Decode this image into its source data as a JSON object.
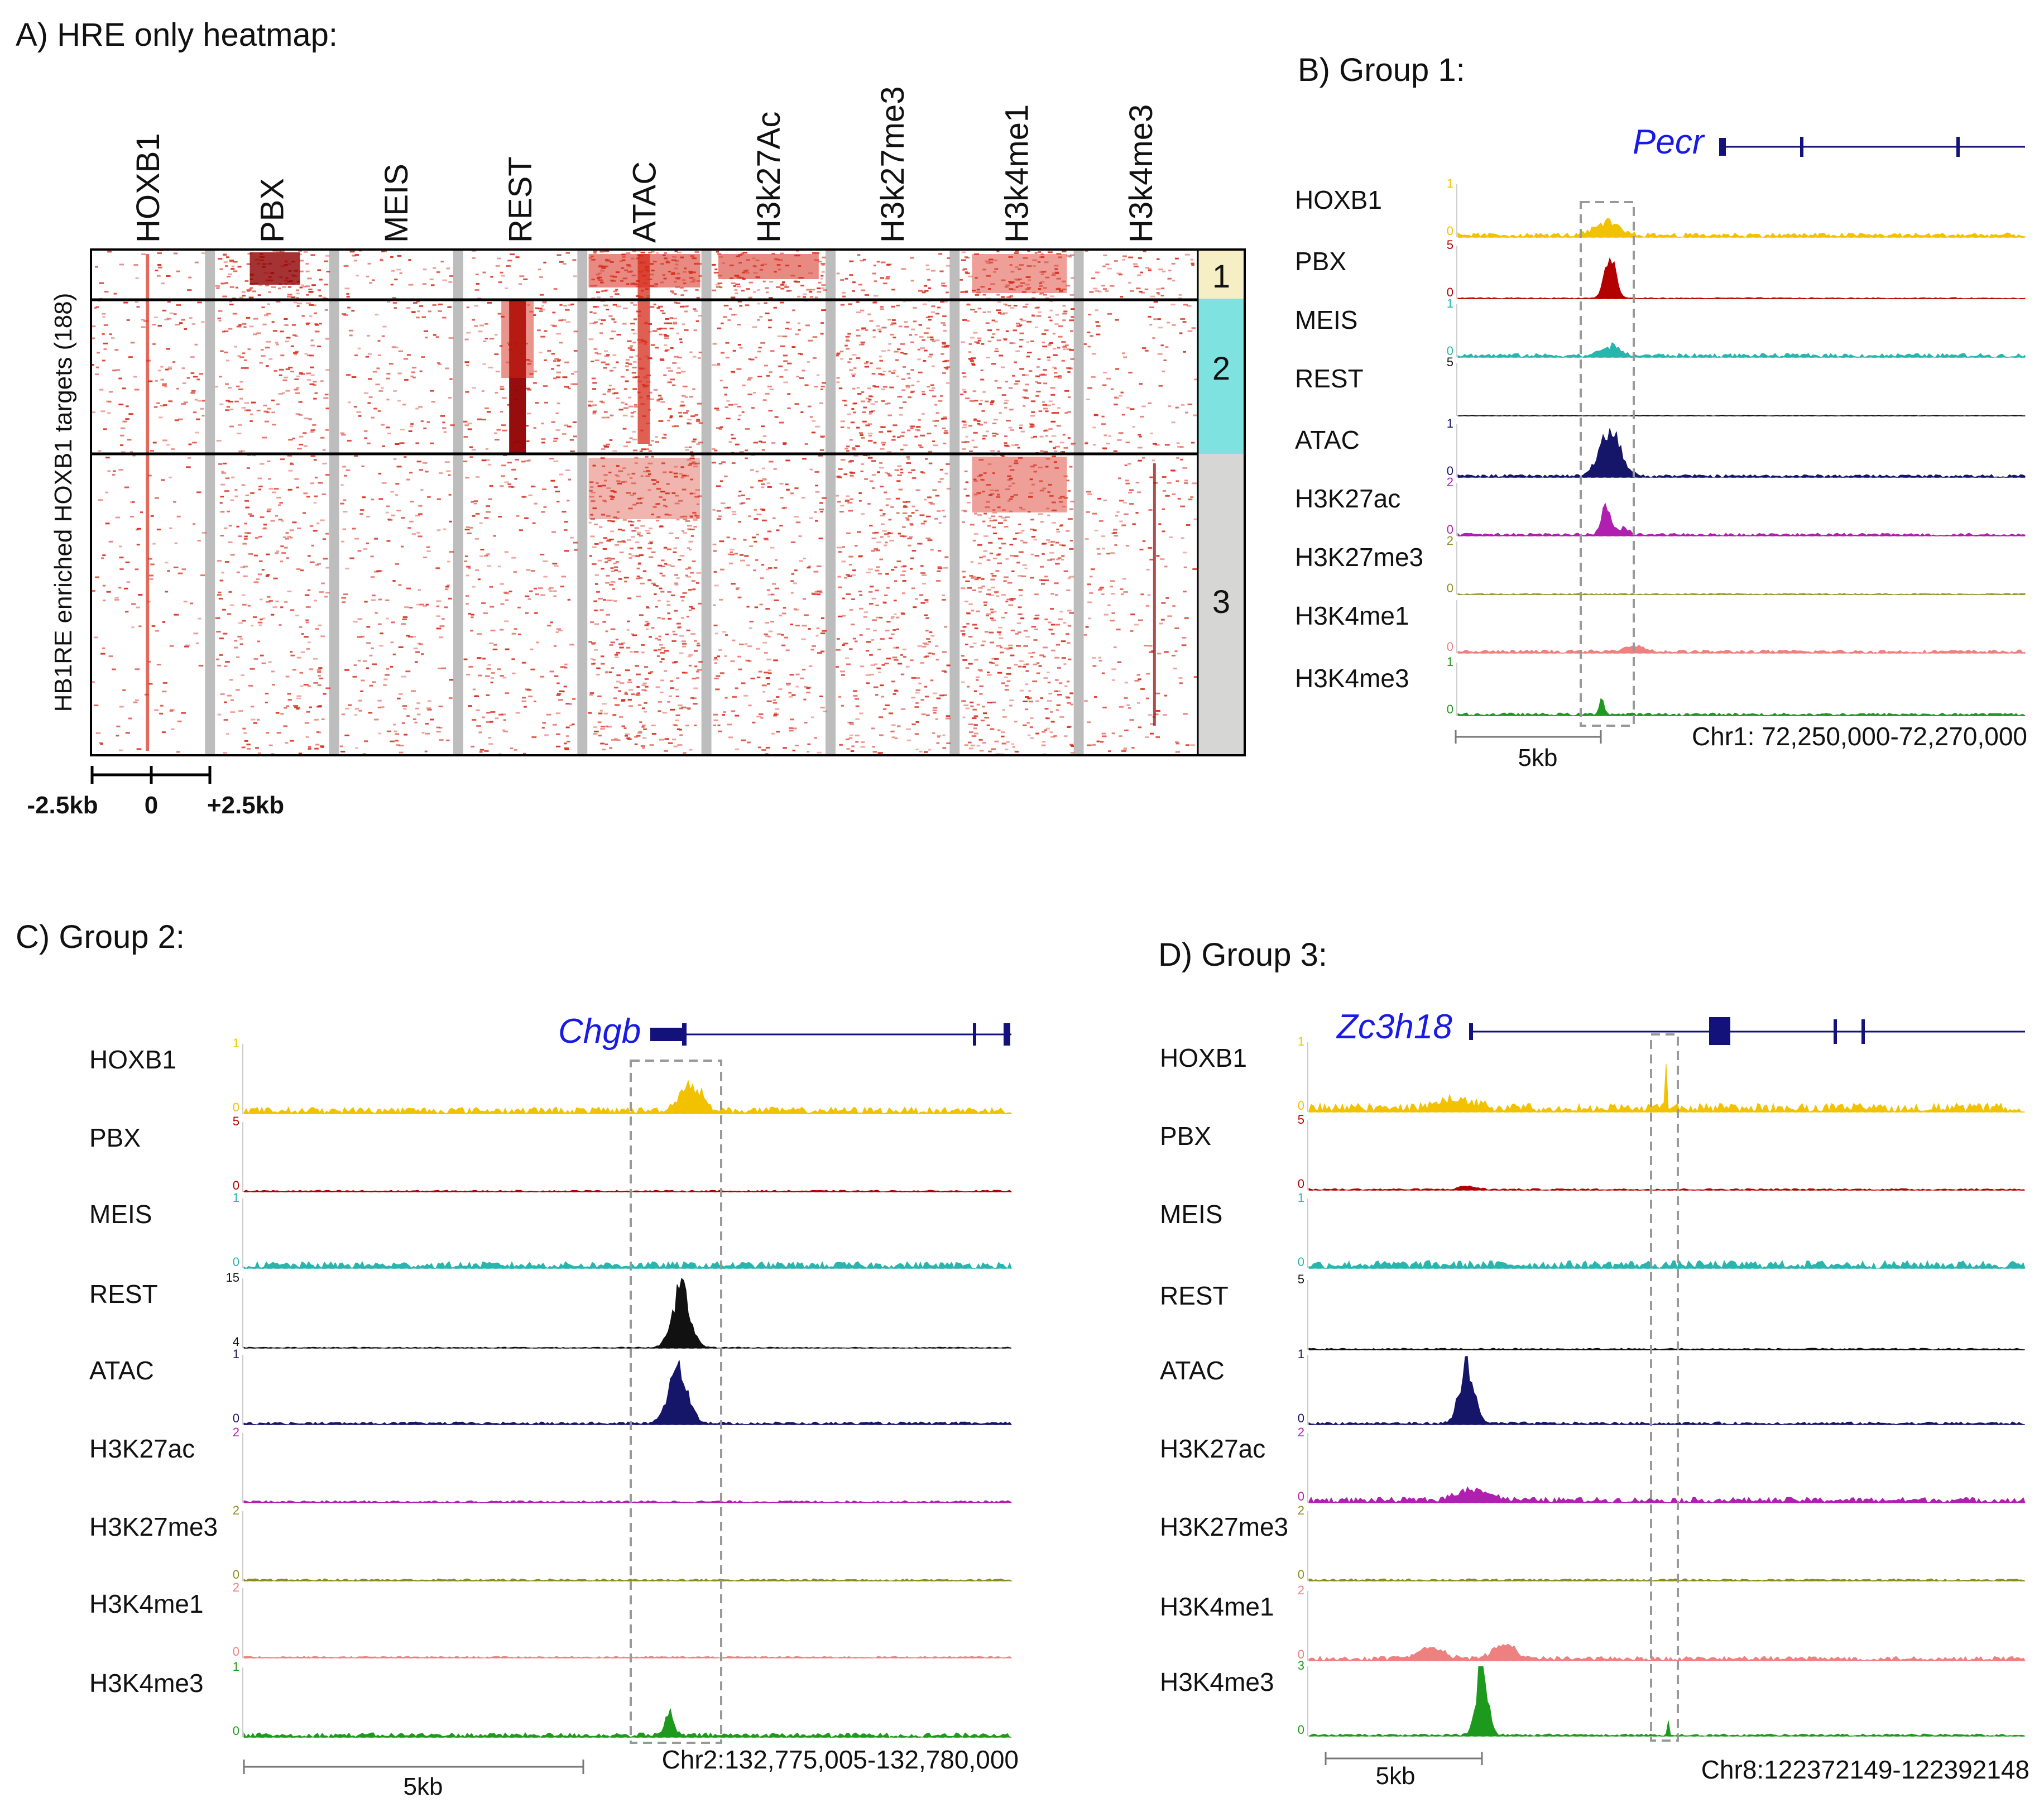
{
  "panel_a": {
    "title": "A) HRE only heatmap:",
    "y_label": "HB1RE enriched HOXB1 targets (188)",
    "columns": [
      "HOXB1",
      "PBX",
      "MEIS",
      "REST",
      "ATAC",
      "H3k27Ac",
      "H3k27me3",
      "H3k4me1",
      "H3k4me3"
    ],
    "groups": [
      "1",
      "2",
      "3"
    ],
    "group_colors": [
      "#f6efc5",
      "#7ee3e0",
      "#d6d6d4"
    ],
    "scale_left": "-2.5kb",
    "scale_mid": "0",
    "scale_right": "+2.5kb"
  },
  "panel_b": {
    "title": "B) Group 1:",
    "gene": "Pecr",
    "coords": "Chr1: 72,250,000-72,270,000",
    "scale_label": "5kb",
    "tracks": [
      {
        "name": "HOXB1",
        "top": "1",
        "bottom": "0",
        "color": "#f2c200"
      },
      {
        "name": "PBX",
        "top": "5",
        "bottom": "0",
        "color": "#b30000"
      },
      {
        "name": "MEIS",
        "top": "1",
        "bottom": "0",
        "color": "#27b5ad"
      },
      {
        "name": "REST",
        "top": "5",
        "bottom": "",
        "color": "#111111"
      },
      {
        "name": "ATAC",
        "top": "1",
        "bottom": "0",
        "color": "#15156a"
      },
      {
        "name": "H3K27ac",
        "top": "2",
        "bottom": "0",
        "color": "#b11fb1"
      },
      {
        "name": "H3K27me3",
        "top": "2",
        "bottom": "0",
        "color": "#8d8d1e"
      },
      {
        "name": "H3K4me1",
        "top": "",
        "bottom": "0",
        "color": "#ee8080"
      },
      {
        "name": "H3K4me3",
        "top": "1",
        "bottom": "0",
        "color": "#1d9a1d"
      }
    ]
  },
  "panel_c": {
    "title": "C) Group 2:",
    "gene": "Chgb",
    "coords": "Chr2:132,775,005-132,780,000",
    "scale_label": "5kb",
    "tracks": [
      {
        "name": "HOXB1",
        "top": "1",
        "bottom": "0",
        "color": "#f2c200"
      },
      {
        "name": "PBX",
        "top": "5",
        "bottom": "0",
        "color": "#b30000"
      },
      {
        "name": "MEIS",
        "top": "1",
        "bottom": "0",
        "color": "#27b5ad"
      },
      {
        "name": "REST",
        "top": "15",
        "bottom": "4",
        "color": "#111111"
      },
      {
        "name": "ATAC",
        "top": "1",
        "bottom": "0",
        "color": "#15156a"
      },
      {
        "name": "H3K27ac",
        "top": "2",
        "bottom": "",
        "color": "#b11fb1"
      },
      {
        "name": "H3K27me3",
        "top": "2",
        "bottom": "0",
        "color": "#8d8d1e"
      },
      {
        "name": "H3K4me1",
        "top": "2",
        "bottom": "0",
        "color": "#ee8080"
      },
      {
        "name": "H3K4me3",
        "top": "1",
        "bottom": "0",
        "color": "#1d9a1d"
      }
    ]
  },
  "panel_d": {
    "title": "D) Group 3:",
    "gene": "Zc3h18",
    "coords": "Chr8:122372149-122392148",
    "scale_label": "5kb",
    "tracks": [
      {
        "name": "HOXB1",
        "top": "1",
        "bottom": "0",
        "color": "#f2c200"
      },
      {
        "name": "PBX",
        "top": "5",
        "bottom": "0",
        "color": "#b30000"
      },
      {
        "name": "MEIS",
        "top": "1",
        "bottom": "0",
        "color": "#27b5ad"
      },
      {
        "name": "REST",
        "top": "5",
        "bottom": "",
        "color": "#111111"
      },
      {
        "name": "ATAC",
        "top": "1",
        "bottom": "0",
        "color": "#15156a"
      },
      {
        "name": "H3K27ac",
        "top": "2",
        "bottom": "0",
        "color": "#b11fb1"
      },
      {
        "name": "H3K27me3",
        "top": "2",
        "bottom": "0",
        "color": "#8d8d1e"
      },
      {
        "name": "H3K4me1",
        "top": "2",
        "bottom": "0",
        "color": "#ee8080"
      },
      {
        "name": "H3K4me3",
        "top": "3",
        "bottom": "0",
        "color": "#1d9a1d"
      }
    ]
  },
  "colors": {
    "heat": "#d62a1a",
    "heat_dark": "#8f0000",
    "column_gap": "#bdbdbd",
    "gene_blue": "#1a1ae6",
    "gene_struct": "#12127a",
    "dashed_box": "#999999"
  }
}
